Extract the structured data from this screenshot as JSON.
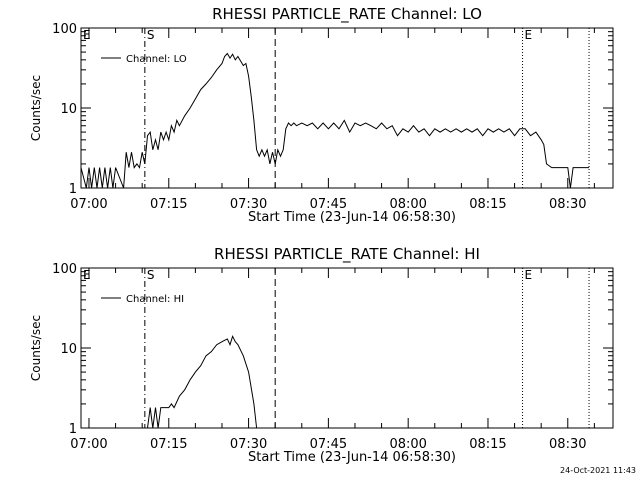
{
  "footer_timestamp": "24-Oct-2021 11:43",
  "chart_data": [
    {
      "type": "line",
      "title": "RHESSI PARTICLE_RATE Channel: LO",
      "xlabel": "Start Time (23-Jun-14 06:58:30)",
      "ylabel": "Counts/sec",
      "x_tick_labels": [
        "07:00",
        "07:15",
        "07:30",
        "07:45",
        "08:00",
        "08:15",
        "08:30"
      ],
      "y_tick_labels": [
        "1",
        "10",
        "100"
      ],
      "y_scale": "log",
      "ylim": [
        1,
        100
      ],
      "xlim": [
        "06:58:30",
        "08:38:30"
      ],
      "legend": {
        "position": "top-left",
        "entries": [
          "Channel: LO"
        ]
      },
      "markers": [
        {
          "label": "E",
          "time": "06:58:30",
          "style": "none"
        },
        {
          "label": "S",
          "time": "07:10:30",
          "style": "dash-dot"
        },
        {
          "label": "",
          "time": "07:35:00",
          "style": "dashed"
        },
        {
          "label": "E",
          "time": "08:21:30",
          "style": "dotted"
        },
        {
          "label": "",
          "time": "08:34:00",
          "style": "dotted"
        }
      ],
      "series": [
        {
          "name": "Channel: LO",
          "points": [
            [
              "06:58:30",
              1.8
            ],
            [
              "06:59:30",
              1.0
            ],
            [
              "07:00:00",
              1.8
            ],
            [
              "07:00:30",
              1.0
            ],
            [
              "07:01:00",
              1.8
            ],
            [
              "07:01:30",
              1.0
            ],
            [
              "07:02:00",
              1.8
            ],
            [
              "07:02:30",
              1.0
            ],
            [
              "07:03:00",
              1.8
            ],
            [
              "07:03:30",
              1.0
            ],
            [
              "07:04:00",
              1.8
            ],
            [
              "07:04:30",
              1.0
            ],
            [
              "07:05:00",
              1.8
            ],
            [
              "07:06:30",
              1.0
            ],
            [
              "07:07:00",
              2.8
            ],
            [
              "07:07:30",
              1.8
            ],
            [
              "07:08:00",
              2.8
            ],
            [
              "07:08:30",
              1.8
            ],
            [
              "07:09:00",
              2.0
            ],
            [
              "07:09:30",
              1.8
            ],
            [
              "07:10:00",
              2.8
            ],
            [
              "07:10:30",
              2.0
            ],
            [
              "07:11:00",
              4.5
            ],
            [
              "07:11:30",
              5.0
            ],
            [
              "07:12:00",
              3.0
            ],
            [
              "07:12:30",
              4.0
            ],
            [
              "07:13:00",
              3.0
            ],
            [
              "07:13:30",
              5.0
            ],
            [
              "07:14:00",
              4.0
            ],
            [
              "07:14:30",
              5.0
            ],
            [
              "07:15:00",
              4.0
            ],
            [
              "07:15:30",
              6.0
            ],
            [
              "07:16:00",
              5.0
            ],
            [
              "07:16:30",
              7.0
            ],
            [
              "07:17:00",
              6.0
            ],
            [
              "07:18:00",
              8.0
            ],
            [
              "07:19:00",
              10.0
            ],
            [
              "07:20:00",
              13.0
            ],
            [
              "07:21:00",
              17.0
            ],
            [
              "07:22:00",
              20.0
            ],
            [
              "07:23:00",
              24.0
            ],
            [
              "07:24:00",
              30.0
            ],
            [
              "07:25:00",
              36.0
            ],
            [
              "07:25:30",
              44.0
            ],
            [
              "07:26:00",
              48.0
            ],
            [
              "07:26:30",
              42.0
            ],
            [
              "07:27:00",
              47.0
            ],
            [
              "07:27:30",
              40.0
            ],
            [
              "07:28:00",
              44.0
            ],
            [
              "07:29:00",
              34.0
            ],
            [
              "07:29:30",
              36.0
            ],
            [
              "07:30:00",
              25.0
            ],
            [
              "07:30:30",
              14.0
            ],
            [
              "07:31:00",
              7.0
            ],
            [
              "07:31:30",
              3.0
            ],
            [
              "07:32:00",
              2.5
            ],
            [
              "07:32:30",
              3.0
            ],
            [
              "07:33:00",
              2.5
            ],
            [
              "07:33:30",
              3.0
            ],
            [
              "07:34:00",
              2.0
            ],
            [
              "07:34:30",
              2.8
            ],
            [
              "07:35:00",
              2.0
            ],
            [
              "07:35:30",
              3.0
            ],
            [
              "07:36:00",
              2.5
            ],
            [
              "07:36:30",
              3.0
            ],
            [
              "07:37:00",
              5.5
            ],
            [
              "07:37:30",
              6.5
            ],
            [
              "07:38:00",
              6.0
            ],
            [
              "07:38:30",
              6.5
            ],
            [
              "07:39:00",
              6.0
            ],
            [
              "07:40:00",
              6.5
            ],
            [
              "07:41:00",
              6.0
            ],
            [
              "07:42:00",
              6.5
            ],
            [
              "07:43:00",
              5.5
            ],
            [
              "07:44:00",
              6.5
            ],
            [
              "07:45:00",
              5.5
            ],
            [
              "07:46:00",
              6.5
            ],
            [
              "07:47:00",
              5.5
            ],
            [
              "07:48:00",
              7.0
            ],
            [
              "07:49:00",
              5.0
            ],
            [
              "07:50:00",
              6.5
            ],
            [
              "07:51:00",
              6.0
            ],
            [
              "07:52:00",
              6.5
            ],
            [
              "07:53:00",
              6.0
            ],
            [
              "07:54:00",
              5.5
            ],
            [
              "07:55:00",
              6.5
            ],
            [
              "07:56:00",
              5.5
            ],
            [
              "07:57:00",
              6.0
            ],
            [
              "07:58:00",
              4.5
            ],
            [
              "07:59:00",
              5.5
            ],
            [
              "08:00:00",
              5.0
            ],
            [
              "08:01:00",
              6.0
            ],
            [
              "08:02:00",
              5.0
            ],
            [
              "08:03:00",
              5.5
            ],
            [
              "08:04:00",
              4.5
            ],
            [
              "08:05:00",
              5.5
            ],
            [
              "08:06:00",
              5.0
            ],
            [
              "08:07:00",
              5.5
            ],
            [
              "08:08:00",
              5.0
            ],
            [
              "08:09:00",
              5.5
            ],
            [
              "08:10:00",
              5.0
            ],
            [
              "08:11:00",
              5.5
            ],
            [
              "08:12:00",
              5.0
            ],
            [
              "08:13:00",
              5.5
            ],
            [
              "08:14:00",
              4.5
            ],
            [
              "08:15:00",
              5.5
            ],
            [
              "08:16:00",
              5.0
            ],
            [
              "08:17:00",
              5.5
            ],
            [
              "08:18:00",
              5.0
            ],
            [
              "08:19:00",
              5.5
            ],
            [
              "08:20:00",
              4.5
            ],
            [
              "08:21:00",
              5.5
            ],
            [
              "08:22:00",
              5.5
            ],
            [
              "08:23:00",
              4.5
            ],
            [
              "08:24:00",
              5.0
            ],
            [
              "08:25:00",
              4.0
            ],
            [
              "08:25:30",
              3.5
            ],
            [
              "08:26:00",
              2.0
            ],
            [
              "08:27:00",
              1.8
            ],
            [
              "08:28:00",
              1.8
            ],
            [
              "08:29:00",
              1.8
            ],
            [
              "08:30:00",
              1.8
            ],
            [
              "08:30:30",
              1.0
            ],
            [
              "08:31:00",
              1.8
            ],
            [
              "08:34:00",
              1.8
            ]
          ]
        }
      ]
    },
    {
      "type": "line",
      "title": "RHESSI PARTICLE_RATE Channel: HI",
      "xlabel": "Start Time (23-Jun-14 06:58:30)",
      "ylabel": "Counts/sec",
      "x_tick_labels": [
        "07:00",
        "07:15",
        "07:30",
        "07:45",
        "08:00",
        "08:15",
        "08:30"
      ],
      "y_tick_labels": [
        "1",
        "10",
        "100"
      ],
      "y_scale": "log",
      "ylim": [
        1,
        100
      ],
      "xlim": [
        "06:58:30",
        "08:38:30"
      ],
      "legend": {
        "position": "top-left",
        "entries": [
          "Channel: HI"
        ]
      },
      "markers": [
        {
          "label": "E",
          "time": "06:58:30",
          "style": "none"
        },
        {
          "label": "S",
          "time": "07:10:30",
          "style": "dash-dot"
        },
        {
          "label": "",
          "time": "07:35:00",
          "style": "dashed"
        },
        {
          "label": "E",
          "time": "08:21:30",
          "style": "dotted"
        },
        {
          "label": "",
          "time": "08:34:00",
          "style": "dotted"
        }
      ],
      "series": [
        {
          "name": "Channel: HI",
          "points": [
            [
              "07:11:00",
              1.0
            ],
            [
              "07:11:30",
              1.8
            ],
            [
              "07:12:00",
              1.0
            ],
            [
              "07:12:30",
              1.8
            ],
            [
              "07:13:00",
              1.0
            ],
            [
              "07:13:30",
              1.8
            ],
            [
              "07:14:00",
              1.8
            ],
            [
              "07:15:00",
              1.8
            ],
            [
              "07:15:30",
              2.0
            ],
            [
              "07:16:00",
              1.8
            ],
            [
              "07:17:00",
              2.5
            ],
            [
              "07:18:00",
              3.0
            ],
            [
              "07:19:00",
              4.0
            ],
            [
              "07:20:00",
              5.0
            ],
            [
              "07:21:00",
              6.0
            ],
            [
              "07:22:00",
              8.0
            ],
            [
              "07:23:00",
              9.0
            ],
            [
              "07:24:00",
              11.0
            ],
            [
              "07:25:00",
              12.0
            ],
            [
              "07:26:00",
              13.0
            ],
            [
              "07:26:30",
              11.0
            ],
            [
              "07:27:00",
              14.0
            ],
            [
              "07:27:30",
              12.0
            ],
            [
              "07:28:00",
              11.0
            ],
            [
              "07:29:00",
              8.0
            ],
            [
              "07:30:00",
              5.0
            ],
            [
              "07:31:00",
              2.0
            ],
            [
              "07:31:30",
              1.0
            ]
          ]
        }
      ]
    }
  ]
}
